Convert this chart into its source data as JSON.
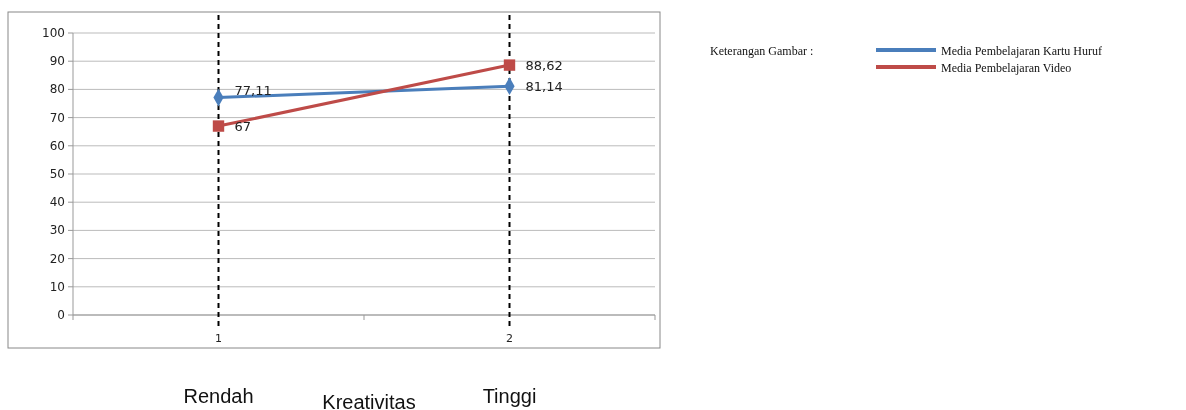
{
  "chart_data": {
    "type": "line",
    "categories": [
      "1",
      "2"
    ],
    "xlabel": "Kreativitas",
    "legend_title": "Keterangan Gambar :",
    "legend": "right",
    "grid": "y",
    "ylim": [
      0,
      100
    ],
    "yticks": [
      0,
      10,
      20,
      30,
      40,
      50,
      60,
      70,
      80,
      90,
      100
    ],
    "series": [
      {
        "name": "Media Pembelajaran Kartu Huruf",
        "color": "#4a7ebb",
        "marker": "diamond",
        "values": [
          77.11,
          81.14
        ],
        "value_labels": [
          "77,11",
          "81,14"
        ]
      },
      {
        "name": "Media Pembelajaran Video",
        "color": "#be4b48",
        "marker": "square",
        "values": [
          67,
          88.62
        ],
        "value_labels": [
          "67",
          "88,62"
        ]
      }
    ],
    "ref_lines": [
      {
        "axis": "x",
        "value": "1",
        "label": "Rendah",
        "color": "#000000",
        "line_style": "dashed"
      },
      {
        "axis": "x",
        "value": "2",
        "label": "Tinggi",
        "color": "#000000",
        "line_style": "dashed"
      }
    ]
  }
}
